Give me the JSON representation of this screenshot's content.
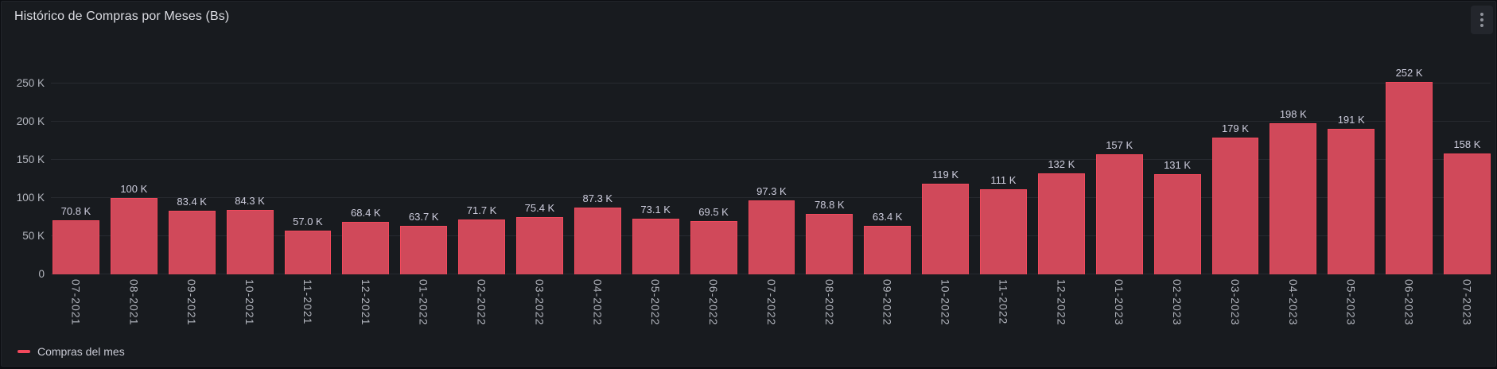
{
  "panel": {
    "title": "Histórico de Compras por Meses (Bs)",
    "menu_icon": "kebab-menu-icon"
  },
  "legend": {
    "label": "Compras del mes",
    "swatch_color": "#F2495C"
  },
  "colors": {
    "panel_bg": "#181b1f",
    "page_bg": "#0c0e12",
    "bar_fill": "#d0495a",
    "bar_border": "#f2495c",
    "grid": "rgba(204,204,220,0.09)",
    "tick_text": "#b2b5bd",
    "value_text": "#ccccdc"
  },
  "chart_data": {
    "type": "bar",
    "title": "Histórico de Compras por Meses (Bs)",
    "unit": "Bs",
    "series_name": "Compras del mes",
    "categories": [
      "07-2021",
      "08-2021",
      "09-2021",
      "10-2021",
      "11-2021",
      "12-2021",
      "01-2022",
      "02-2022",
      "03-2022",
      "04-2022",
      "05-2022",
      "06-2022",
      "07-2022",
      "08-2022",
      "09-2022",
      "10-2022",
      "11-2022",
      "12-2022",
      "01-2023",
      "02-2023",
      "03-2023",
      "04-2023",
      "05-2023",
      "06-2023",
      "07-2023"
    ],
    "values": [
      70800,
      100000,
      83400,
      84300,
      57000,
      68400,
      63700,
      71700,
      75400,
      87300,
      73100,
      69500,
      97300,
      78800,
      63400,
      119000,
      111000,
      132000,
      157000,
      131000,
      179000,
      198000,
      191000,
      252000,
      158000
    ],
    "value_labels": [
      "70.8 K",
      "100 K",
      "83.4 K",
      "84.3 K",
      "57.0 K",
      "68.4 K",
      "63.7 K",
      "71.7 K",
      "75.4 K",
      "87.3 K",
      "73.1 K",
      "69.5 K",
      "97.3 K",
      "78.8 K",
      "63.4 K",
      "119 K",
      "111 K",
      "132 K",
      "157 K",
      "131 K",
      "179 K",
      "198 K",
      "191 K",
      "252 K",
      "158 K"
    ],
    "yticks": [
      0,
      50000,
      100000,
      150000,
      200000,
      250000
    ],
    "ytick_labels": [
      "0",
      "50 K",
      "100 K",
      "150 K",
      "200 K",
      "250 K"
    ],
    "ylim": [
      0,
      260000
    ],
    "xlabel": "",
    "ylabel": "",
    "grid": true,
    "legend_position": "bottom-left",
    "x_label_rotation": "vertical"
  }
}
